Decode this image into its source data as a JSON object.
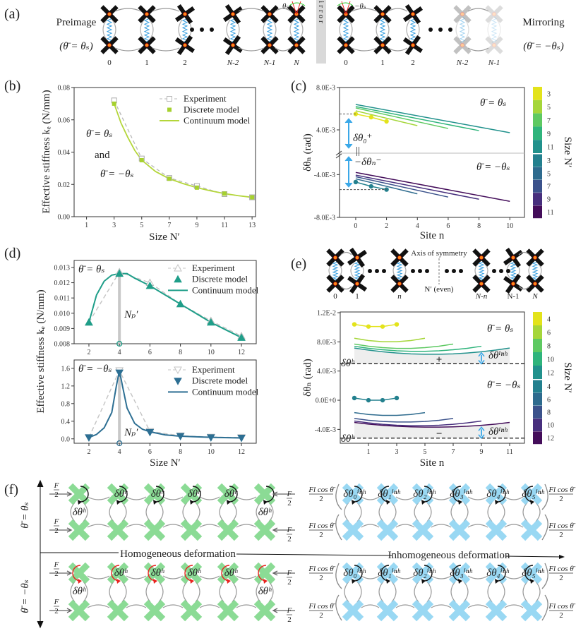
{
  "panel_labels": {
    "a": "(a)",
    "b": "(b)",
    "c": "(c)",
    "d": "(d)",
    "e": "(e)",
    "f": "(f)"
  },
  "colors": {
    "cell_black": "#111111",
    "joint_orange": "#ff8c1a",
    "spring_blue": "#3aa0e0",
    "homogeneous_green": "#7fd88a",
    "inhomogeneous_blue": "#8fd4f2",
    "rotation_red": "#e8231f",
    "mirror_gray": "#d9d9d9"
  },
  "panel_a": {
    "left_title": "Preimage",
    "left_condition": "(θ̄ = θₛ)",
    "right_title": "Mirroring",
    "right_condition": "(θ̄ = −θₛ)",
    "mirror_label": "Mirror",
    "angle_left": "θₛ",
    "angle_right": "−θₛ",
    "left_site_labels": [
      "0",
      "1",
      "2",
      "N-2",
      "N-1",
      "N"
    ],
    "right_site_labels": [
      "0",
      "1",
      "2",
      "N-2",
      "N-1"
    ]
  },
  "panel_e_schematic": {
    "site_labels": [
      "0",
      "1",
      "n",
      "N-n",
      "N-1",
      "N"
    ],
    "axis_label": "Axis of symmetry",
    "center_label": "N′ (even)"
  },
  "panel_f": {
    "condition_top": "θ̄ = θₛ",
    "condition_bottom": "θ̄ = −θₛ",
    "homogeneous_label": "Homogeneous deformation",
    "inhomogeneous_label": "Inhomogeneous deformation",
    "force_homogeneous": {
      "num": "F",
      "den": "2"
    },
    "force_inhomogeneous": {
      "num": "Fl cos θ̄",
      "den": "2"
    },
    "rotation_homogeneous": "δθʰ",
    "rotation_inhomogeneous": [
      "δθ₀ⁱⁿʰ",
      "δθ₁ⁱⁿʰ",
      "δθ₂ⁱⁿʰ",
      "δθ₃ⁱⁿʰ",
      "δθ₄ⁱⁿʰ",
      "δθ₅ⁱⁿʰ"
    ]
  },
  "chart_data": [
    {
      "panel": "b",
      "type": "line",
      "xlabel": "Size N′",
      "ylabel": "Effective stiffness kₑ (N/mm)",
      "xlim": [
        0.1,
        13.25
      ],
      "ylim": [
        0,
        0.08
      ],
      "xticks": [
        1,
        3,
        5,
        7,
        9,
        11,
        13
      ],
      "xticklabels": [
        "1",
        "3",
        "5",
        "7",
        "9",
        "11",
        "13"
      ],
      "yticks": [
        0,
        0.02,
        0.04,
        0.06,
        0.08
      ],
      "yticklabels": [
        "0.00",
        "0.02",
        "0.04",
        "0.06",
        "0.08"
      ],
      "legend": "top-right",
      "annotations": [
        "θ̄ = θₛ",
        "and",
        "θ̄ = −θₛ"
      ],
      "series": [
        {
          "name": "Experiment",
          "style": "dashed-open-square",
          "color": "#b8b8b8",
          "x": [
            3,
            5,
            7,
            9,
            11,
            13
          ],
          "y": [
            0.072,
            0.036,
            0.024,
            0.019,
            0.014,
            0.012
          ]
        },
        {
          "name": "Discrete model",
          "style": "square-marker",
          "color": "#a6d12e",
          "x": [
            3,
            5,
            7,
            9,
            11,
            13
          ],
          "y": [
            0.07,
            0.035,
            0.0235,
            0.018,
            0.0143,
            0.012
          ]
        },
        {
          "name": "Continuum model",
          "style": "line",
          "color": "#b4d63a",
          "x": [
            3,
            3.5,
            4,
            4.5,
            5,
            6,
            7,
            8,
            9,
            10,
            11,
            12,
            13
          ],
          "y": [
            0.07,
            0.058,
            0.049,
            0.041,
            0.035,
            0.028,
            0.0235,
            0.0205,
            0.018,
            0.016,
            0.0143,
            0.013,
            0.012
          ]
        }
      ]
    },
    {
      "panel": "c",
      "type": "line",
      "xlabel": "Site n",
      "ylabel": "δθₙ (rad)",
      "xlim": [
        -1.05,
        10.95
      ],
      "ylim_upper": [
        0.0018,
        0.008
      ],
      "ylim_lower": [
        -0.008,
        -0.002
      ],
      "broken_axis": true,
      "xticks": [
        0,
        2,
        4,
        6,
        8,
        10
      ],
      "xticklabels": [
        "0",
        "2",
        "4",
        "6",
        "8",
        "10"
      ],
      "yticks": [
        0.008,
        0.004,
        -0.004,
        -0.008
      ],
      "yticklabels": [
        "8.0E-3",
        "4.0E-3",
        "-4.0E-3",
        "-8.0E-3"
      ],
      "annotations": {
        "upper": "θ̄ = θₛ",
        "lower": "θ̄ = −θₛ",
        "delta_plus": "δθ₀⁺",
        "delta_minus": "−δθₙ⁻",
        "equal": "||"
      },
      "colorbar": {
        "label": "Size N′",
        "upper_labels": [
          "3",
          "5",
          "7",
          "9",
          "11"
        ],
        "lower_labels": [
          "3",
          "5",
          "7",
          "9",
          "11"
        ],
        "upper_colors": [
          "#e3e31b",
          "#a5d63a",
          "#5ec962",
          "#2fb47c",
          "#21918c"
        ],
        "lower_colors": [
          "#23808e",
          "#2e6b8e",
          "#3b528b",
          "#472f7d",
          "#440d5a"
        ]
      },
      "series_upper": [
        {
          "size": 3,
          "markers": true,
          "color": "#e3e31b",
          "x": [
            0,
            1,
            2
          ],
          "y": [
            0.0055,
            0.0052,
            0.0048
          ]
        },
        {
          "size": 5,
          "color": "#a5d63a",
          "x": [
            0,
            4
          ],
          "y": [
            0.0058,
            0.0044
          ]
        },
        {
          "size": 7,
          "color": "#5ec962",
          "x": [
            0,
            6
          ],
          "y": [
            0.00607,
            0.00413
          ]
        },
        {
          "size": 9,
          "color": "#2fb47c",
          "x": [
            0,
            8
          ],
          "y": [
            0.0062,
            0.00393
          ]
        },
        {
          "size": 11,
          "color": "#21918c",
          "x": [
            0,
            10
          ],
          "y": [
            0.0064,
            0.00373
          ]
        }
      ],
      "series_lower": [
        {
          "size": 3,
          "markers": true,
          "color": "#23808e",
          "x": [
            0,
            1,
            2
          ],
          "y": [
            -0.0047,
            -0.0051,
            -0.0054
          ]
        },
        {
          "size": 5,
          "color": "#2e6b8e",
          "x": [
            0,
            4
          ],
          "y": [
            -0.0044,
            -0.0058
          ]
        },
        {
          "size": 7,
          "color": "#3b528b",
          "x": [
            0,
            6
          ],
          "y": [
            -0.0042,
            -0.0061
          ]
        },
        {
          "size": 9,
          "color": "#472f7d",
          "x": [
            0,
            8
          ],
          "y": [
            -0.00405,
            -0.0063
          ]
        },
        {
          "size": 11,
          "color": "#440d5a",
          "x": [
            0,
            10
          ],
          "y": [
            -0.0038,
            -0.0065
          ]
        }
      ]
    },
    {
      "panel": "d-top",
      "type": "line",
      "condition": "θ̄ = θₛ",
      "xlim": [
        1.03,
        12.97
      ],
      "ylim": [
        0.008,
        0.01346
      ],
      "xticks": [
        2,
        4,
        6,
        8,
        10,
        12
      ],
      "xticklabels": [
        "2",
        "4",
        "6",
        "8",
        "10",
        "12"
      ],
      "yticks": [
        0.008,
        0.009,
        0.01,
        0.011,
        0.012,
        0.013
      ],
      "yticklabels": [
        "0.008",
        "0.009",
        "0.010",
        "0.011",
        "0.012",
        "0.013"
      ],
      "peak_label": "Nₚ′",
      "peak_x": 4,
      "legend": "top-right",
      "series": [
        {
          "name": "Experiment",
          "style": "dashed-open-triangle-up",
          "color": "#c4c4c4",
          "x": [
            2,
            4,
            6,
            8,
            10,
            12
          ],
          "y": [
            0.0094,
            0.0127,
            0.012,
            0.0106,
            0.0095,
            0.0085
          ]
        },
        {
          "name": "Discrete model",
          "style": "triangle-up-marker",
          "color": "#1f9e89",
          "x": [
            2,
            4,
            6,
            8,
            10,
            12
          ],
          "y": [
            0.0094,
            0.0126,
            0.0118,
            0.0106,
            0.0094,
            0.0084
          ]
        },
        {
          "name": "Continuum model",
          "style": "line",
          "color": "#1f9e89",
          "x": [
            2,
            2.5,
            3,
            3.5,
            4,
            4.5,
            5,
            6,
            7,
            8,
            9,
            10,
            11,
            12
          ],
          "y": [
            0.0094,
            0.0112,
            0.0121,
            0.0125,
            0.0126,
            0.0126,
            0.0123,
            0.0118,
            0.0112,
            0.0106,
            0.01,
            0.0094,
            0.0089,
            0.0084
          ]
        }
      ]
    },
    {
      "panel": "d-bottom",
      "type": "line",
      "condition": "θ̄ = −θₛ",
      "xlabel": "Size N′",
      "ylabel": "Effective stiffness kₑ (N/mm)",
      "xlim": [
        1.03,
        12.97
      ],
      "ylim": [
        -0.1,
        1.79
      ],
      "xticks": [
        2,
        4,
        6,
        8,
        10,
        12
      ],
      "xticklabels": [
        "2",
        "4",
        "6",
        "8",
        "10",
        "12"
      ],
      "yticks": [
        0,
        0.4,
        0.8,
        1.2,
        1.6
      ],
      "yticklabels": [
        "0.0",
        "0.4",
        "0.8",
        "1.2",
        "1.6"
      ],
      "peak_label": "Nₚ′",
      "peak_x": 4,
      "legend": "top-right",
      "series": [
        {
          "name": "Experiment",
          "style": "dashed-open-triangle-down",
          "color": "#c4c4c4",
          "x": [
            2,
            4,
            6,
            8,
            10,
            12
          ],
          "y": [
            0.03,
            1.55,
            0.17,
            0.07,
            0.04,
            0.03
          ]
        },
        {
          "name": "Discrete model",
          "style": "triangle-down-marker",
          "color": "#2d6f93",
          "x": [
            2,
            4,
            6,
            8,
            10,
            12
          ],
          "y": [
            0.03,
            1.5,
            0.15,
            0.06,
            0.03,
            0.02
          ]
        },
        {
          "name": "Continuum model",
          "style": "line",
          "color": "#2d6f93",
          "x": [
            2,
            2.5,
            3,
            3.5,
            3.8,
            4,
            4.2,
            4.5,
            5,
            5.5,
            6,
            7,
            8,
            10,
            12
          ],
          "y": [
            0.03,
            0.1,
            0.25,
            0.6,
            1.2,
            1.55,
            1.2,
            0.7,
            0.35,
            0.22,
            0.16,
            0.09,
            0.06,
            0.035,
            0.02
          ]
        }
      ]
    },
    {
      "panel": "e",
      "type": "line",
      "xlabel": "Site n",
      "ylabel": "δθₙ (rad)",
      "xlim": [
        -1,
        12.05
      ],
      "ylim": [
        -0.0059,
        0.0121
      ],
      "xticks": [
        1,
        3,
        5,
        7,
        9,
        11
      ],
      "xticklabels": [
        "1",
        "3",
        "5",
        "7",
        "9",
        "11"
      ],
      "yticks": [
        -0.004,
        0,
        0.004,
        0.008,
        0.012
      ],
      "yticklabels": [
        "-4.0E-3",
        "0.0E+0",
        "4.0E-3",
        "8.0E-3",
        "1.2E-2"
      ],
      "homogeneous_upper": 0.005,
      "homogeneous_lower": -0.0052,
      "annotations": {
        "upper": "θ̄ = θₛ",
        "lower": "θ̄ = −θₛ",
        "homogeneous": "δθʰ",
        "inhomogeneous": "δθⁱⁿʰ",
        "plus": "+",
        "minus": "−"
      },
      "colorbar": {
        "label": "Size N′",
        "upper_labels": [
          "4",
          "6",
          "8",
          "10",
          "12"
        ],
        "lower_labels": [
          "4",
          "6",
          "8",
          "10",
          "12"
        ],
        "upper_colors": [
          "#e3e31b",
          "#a5d63a",
          "#5ec962",
          "#2fb47c",
          "#21918c"
        ],
        "lower_colors": [
          "#23808e",
          "#2e6b8e",
          "#3b528b",
          "#472f7d",
          "#440d5a"
        ]
      },
      "series_upper": [
        {
          "size": 4,
          "markers": true,
          "color": "#e3e31b",
          "x": [
            0,
            1,
            2,
            3
          ],
          "y": [
            0.0104,
            0.0101,
            0.0101,
            0.0104
          ]
        },
        {
          "size": 6,
          "color": "#a5d63a",
          "x": [
            0,
            1,
            2,
            3,
            4,
            5
          ],
          "y": [
            0.0085,
            0.00818,
            0.00802,
            0.00802,
            0.00818,
            0.0085
          ]
        },
        {
          "size": 8,
          "color": "#5ec962",
          "x": [
            0,
            1,
            2,
            3,
            4,
            5,
            6,
            7
          ],
          "y": [
            0.0077,
            0.00741,
            0.00721,
            0.00711,
            0.00711,
            0.00721,
            0.00741,
            0.0077
          ]
        },
        {
          "size": 10,
          "color": "#2fb47c",
          "x": [
            0,
            1,
            2,
            3,
            4,
            5,
            6,
            7,
            8,
            9
          ],
          "y": [
            0.0074,
            0.00712,
            0.00692,
            0.00678,
            0.00671,
            0.00671,
            0.00678,
            0.00692,
            0.00712,
            0.0074
          ]
        },
        {
          "size": 12,
          "color": "#21918c",
          "x": [
            0,
            1,
            2,
            3,
            4,
            5,
            6,
            7,
            8,
            9,
            10,
            11
          ],
          "y": [
            0.00715,
            0.00687,
            0.00664,
            0.00648,
            0.00636,
            0.00631,
            0.00631,
            0.00636,
            0.00648,
            0.00664,
            0.00687,
            0.00715
          ]
        }
      ],
      "series_lower": [
        {
          "size": 4,
          "markers": true,
          "color": "#23808e",
          "x": [
            0,
            1,
            2,
            3
          ],
          "y": [
            0.0003,
            0.0,
            0.0,
            0.0003
          ]
        },
        {
          "size": 6,
          "color": "#2e6b8e",
          "x": [
            0,
            1,
            2,
            3,
            4,
            5
          ],
          "y": [
            -0.0017,
            -0.00196,
            -0.00208,
            -0.00208,
            -0.00196,
            -0.0017
          ]
        },
        {
          "size": 8,
          "color": "#3b528b",
          "x": [
            0,
            1,
            2,
            3,
            4,
            5,
            6,
            7
          ],
          "y": [
            -0.0025,
            -0.00275,
            -0.00291,
            -0.00299,
            -0.00299,
            -0.00291,
            -0.00275,
            -0.0025
          ]
        },
        {
          "size": 10,
          "color": "#472f7d",
          "x": [
            0,
            1,
            2,
            3,
            4,
            5,
            6,
            7,
            8,
            9
          ],
          "y": [
            -0.00285,
            -0.00311,
            -0.0033,
            -0.00343,
            -0.00349,
            -0.00349,
            -0.00343,
            -0.0033,
            -0.00311,
            -0.00285
          ]
        },
        {
          "size": 12,
          "color": "#440d5a",
          "x": [
            0,
            1,
            2,
            3,
            4,
            5,
            6,
            7,
            8,
            9,
            10,
            11
          ],
          "y": [
            -0.00305,
            -0.00327,
            -0.00344,
            -0.00357,
            -0.00365,
            -0.00369,
            -0.00369,
            -0.00365,
            -0.00357,
            -0.00344,
            -0.00327,
            -0.00305
          ]
        }
      ]
    }
  ]
}
